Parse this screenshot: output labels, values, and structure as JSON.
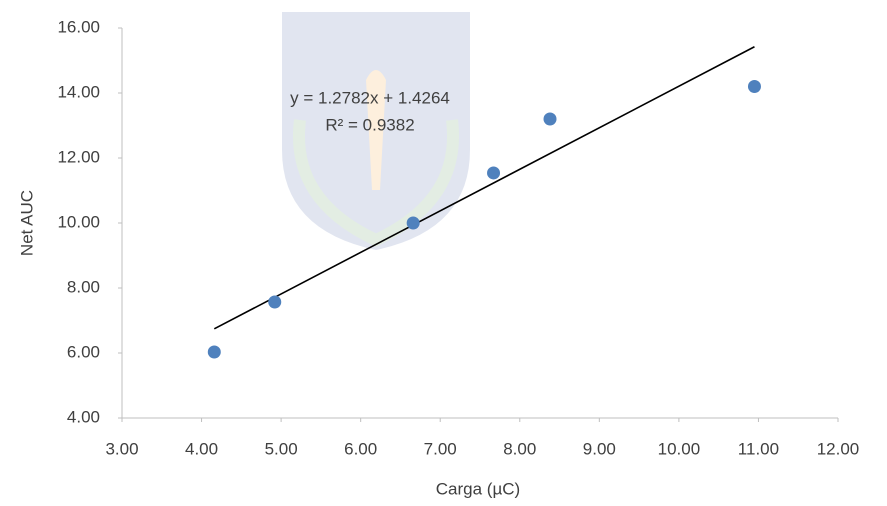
{
  "chart_data": {
    "type": "scatter",
    "x_label": "Carga (µC)",
    "y_label": "Net AUC",
    "x": [
      4.16,
      4.92,
      6.66,
      7.67,
      8.38,
      10.95
    ],
    "values": [
      6.03,
      7.57,
      10.0,
      11.54,
      13.2,
      14.2
    ],
    "color": "#4f81bd",
    "xlim": [
      3,
      12
    ],
    "xticks": [
      {
        "value": 3,
        "label": "3.00"
      },
      {
        "value": 4,
        "label": "4.00"
      },
      {
        "value": 5,
        "label": "5.00"
      },
      {
        "value": 6,
        "label": "6.00"
      },
      {
        "value": 7,
        "label": "7.00"
      },
      {
        "value": 8,
        "label": "8.00"
      },
      {
        "value": 9,
        "label": "9.00"
      },
      {
        "value": 10,
        "label": "10.00"
      },
      {
        "value": 11,
        "label": "11.00"
      },
      {
        "value": 12,
        "label": "12.00"
      }
    ],
    "ylim": [
      4,
      16
    ],
    "yticks": [
      {
        "value": 4,
        "label": "4.00"
      },
      {
        "value": 6,
        "label": "6.00"
      },
      {
        "value": 8,
        "label": "8.00"
      },
      {
        "value": 10,
        "label": "10.00"
      },
      {
        "value": 12,
        "label": "12.00"
      },
      {
        "value": 14,
        "label": "14.00"
      },
      {
        "value": 16,
        "label": "16.00"
      }
    ],
    "trendline": {
      "slope": 1.2782,
      "intercept": 1.4264,
      "equation": "y = 1.2782x + 1.4264",
      "r_squared": "R² = 0.9382"
    },
    "grid": false
  }
}
